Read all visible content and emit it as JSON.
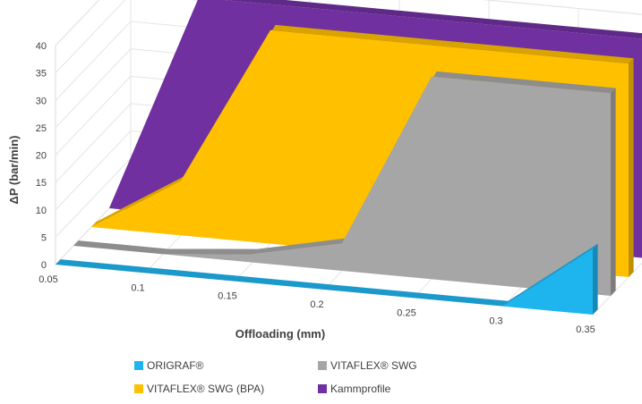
{
  "chart_data": {
    "type": "area",
    "projection": "3d",
    "xlabel": "Offloading (mm)",
    "ylabel": "ΔP (bar/min)",
    "x_ticks": [
      "0.05",
      "0.1",
      "0.15",
      "0.2",
      "0.25",
      "0.3",
      "0.35"
    ],
    "y_ticks": [
      "0",
      "5",
      "10",
      "15",
      "20",
      "25",
      "30",
      "35",
      "40"
    ],
    "xlim": [
      0.05,
      0.35
    ],
    "ylim": [
      0,
      40
    ],
    "grid": true,
    "legend_position": "bottom",
    "series": [
      {
        "name": "ORIGRAF®",
        "color": "#1EB4EE",
        "points": [
          [
            0.05,
            0
          ],
          [
            0.3,
            0
          ],
          [
            0.35,
            12
          ]
        ]
      },
      {
        "name": "VITAFLEX® SWG",
        "color": "#A6A6A6",
        "points": [
          [
            0.05,
            0
          ],
          [
            0.1,
            0
          ],
          [
            0.15,
            1.5
          ],
          [
            0.2,
            5
          ],
          [
            0.25,
            37
          ],
          [
            0.35,
            37
          ]
        ]
      },
      {
        "name": "VITAFLEX® SWG (BPA)",
        "color": "#FFC000",
        "points": [
          [
            0.05,
            0
          ],
          [
            0.1,
            10
          ],
          [
            0.15,
            39
          ],
          [
            0.35,
            39
          ]
        ]
      },
      {
        "name": "Kammprofile",
        "color": "#7030A0",
        "points": [
          [
            0.05,
            0
          ],
          [
            0.1,
            40
          ],
          [
            0.35,
            40
          ]
        ]
      }
    ]
  }
}
